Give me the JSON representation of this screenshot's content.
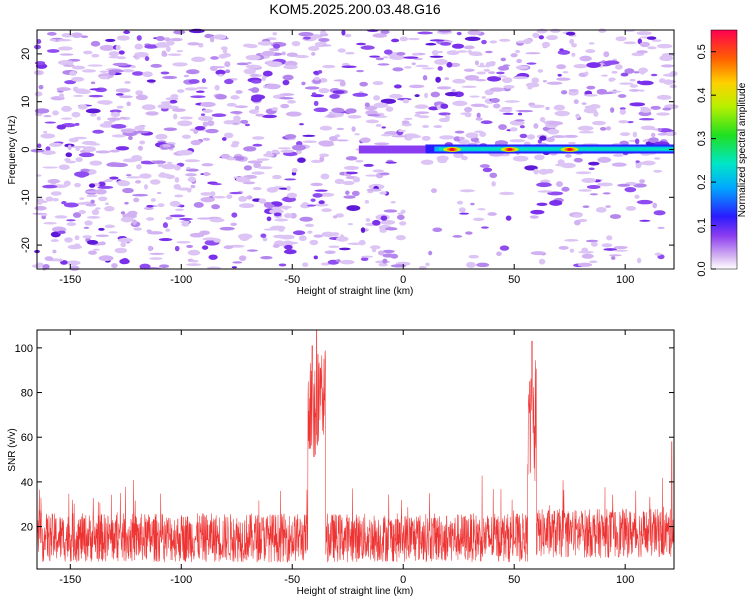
{
  "title": "KOM5.2025.200.03.48.G16",
  "chart_data": [
    {
      "type": "heatmap",
      "xlabel": "Height of straight line (km)",
      "ylabel": "Frequency (Hz)",
      "xlim": [
        -165,
        122
      ],
      "ylim": [
        -25,
        25
      ],
      "xticks": [
        -150,
        -100,
        -50,
        0,
        50,
        100
      ],
      "yticks": [
        -20,
        -10,
        0,
        10,
        20
      ],
      "colorbar": {
        "label": "Normalized spectral amplitude",
        "range": [
          0.0,
          0.55
        ],
        "ticks": [
          "0.0",
          "0.1",
          "0.2",
          "0.3",
          "0.4",
          "0.5"
        ]
      },
      "grid": false,
      "features": [
        {
          "description": "scattered weak purple noise blobs over whole range",
          "amplitude": [
            0.02,
            0.12
          ]
        },
        {
          "band": "near 0 Hz",
          "x_range": [
            -20,
            122
          ],
          "peak_amplitude": 0.5,
          "peaks_at_x": [
            22,
            48,
            75
          ]
        }
      ]
    },
    {
      "type": "line",
      "xlabel": "Height of straight line (km)",
      "ylabel": "SNR (v/v)",
      "xlim": [
        -165,
        122
      ],
      "ylim": [
        1,
        108
      ],
      "xticks": [
        -150,
        -100,
        -50,
        0,
        50,
        100
      ],
      "yticks": [
        20,
        40,
        60,
        80,
        100
      ],
      "grid": false,
      "series": [
        {
          "color": "#ee3333",
          "baseline_mean": 15,
          "noise_range": [
            3,
            35
          ],
          "peaks": [
            {
              "x": -41,
              "y": 101
            },
            {
              "x": -39,
              "y": 108
            },
            {
              "x": -37,
              "y": 82
            },
            {
              "x": 58,
              "y": 103
            },
            {
              "x": 57,
              "y": 85
            },
            {
              "x": 121,
              "y": 58
            }
          ]
        }
      ]
    }
  ]
}
